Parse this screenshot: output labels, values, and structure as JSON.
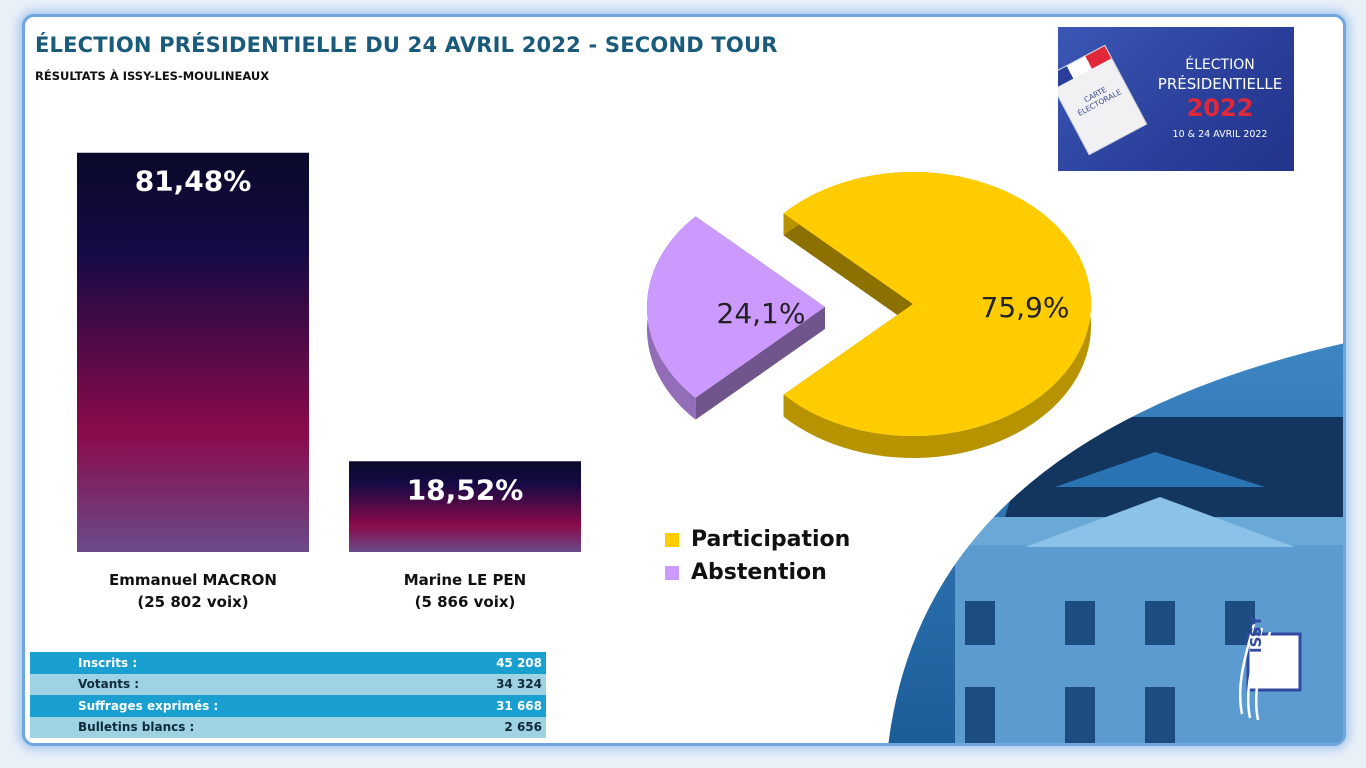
{
  "header": {
    "title": "ÉLECTION PRÉSIDENTIELLE DU 24 AVRIL 2022 - SECOND TOUR",
    "subtitle": "RÉSULTATS À ISSY-LES-MOULINEAUX"
  },
  "logo": {
    "line1": "ÉLECTION",
    "line2": "PRÉSIDENTIELLE",
    "year": "2022",
    "dates": "10 & 24 AVRIL 2022",
    "card_text": "CARTE ÉLECTORALE"
  },
  "chart_data": [
    {
      "type": "bar",
      "categories": [
        "Emmanuel MACRON",
        "Marine LE PEN"
      ],
      "values": [
        81.48,
        18.52
      ],
      "value_labels": [
        "81,48%",
        "18,52%"
      ],
      "sublabels": [
        "(25 802 voix)",
        "(5 866 voix)"
      ],
      "ylim": [
        0,
        100
      ],
      "colors": {
        "top": "#0a0a2a",
        "mid": "#8b0a4a",
        "bottom": "#6a4a8a"
      }
    },
    {
      "type": "pie",
      "labels": [
        "Participation",
        "Abstention"
      ],
      "values": [
        75.9,
        24.1
      ],
      "value_labels": [
        "75,9%",
        "24,1%"
      ],
      "colors": [
        "#ffcc00",
        "#cc99ff"
      ],
      "legend_position": "bottom-left"
    }
  ],
  "stats": [
    {
      "label": "Inscrits :",
      "value": "45 208"
    },
    {
      "label": "Votants :",
      "value": "34 324"
    },
    {
      "label": "Suffrages exprimés :",
      "value": "31 668"
    },
    {
      "label": "Bulletins blancs :",
      "value": "2 656"
    }
  ],
  "issy_logo": {
    "text": "ISSY",
    "color": "#2f4aa0"
  },
  "colors": {
    "title": "#1a5a7a",
    "frame": "#6fa6df",
    "stat_dark": "#19a0d0",
    "stat_light": "#9fd2e2",
    "photo": "#1d6fae"
  }
}
